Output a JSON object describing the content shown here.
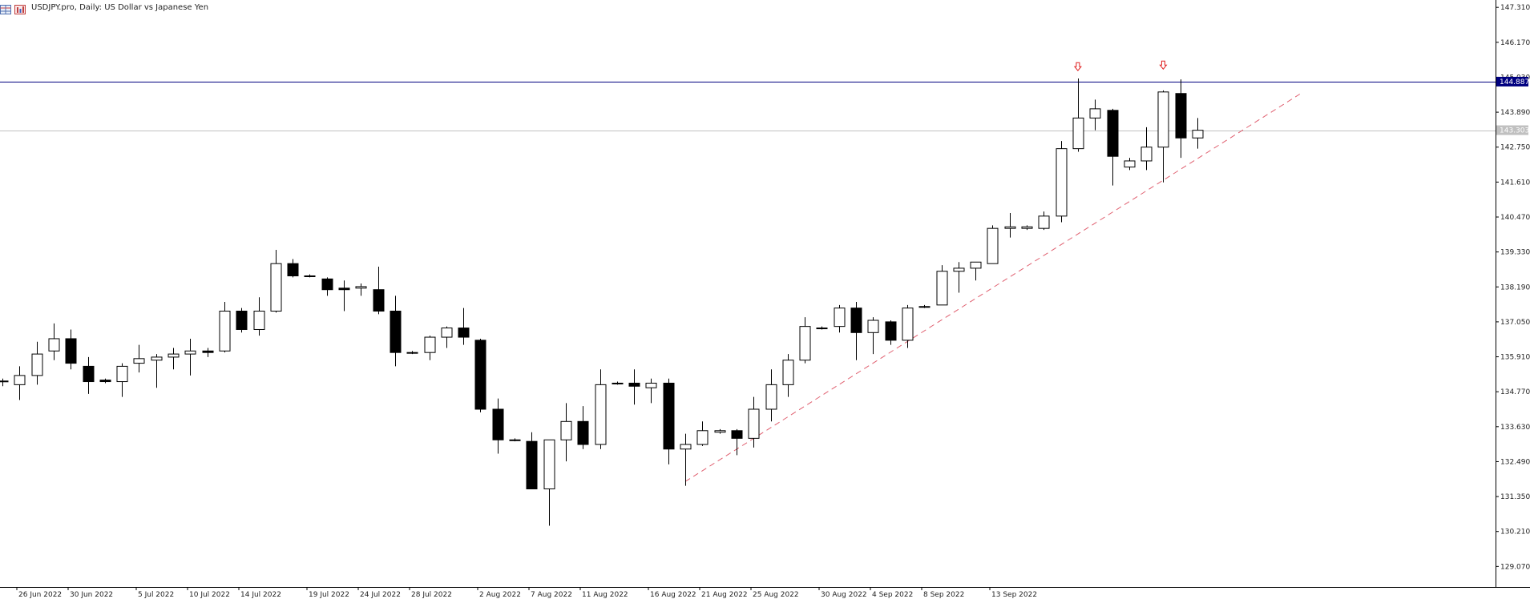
{
  "header": {
    "title": "USDJPY.pro, Daily:  US Dollar vs Japanese Yen",
    "icons": [
      "chart-grid-icon",
      "chart-bars-icon"
    ]
  },
  "chart_data": {
    "type": "candlestick",
    "symbol": "USDJPY.pro",
    "timeframe": "Daily",
    "description": "US Dollar vs Japanese Yen",
    "ylim": [
      128.4,
      147.55
    ],
    "y_ticks": [
      "147.310",
      "146.170",
      "145.030",
      "143.890",
      "142.750",
      "141.610",
      "140.470",
      "139.330",
      "138.190",
      "137.050",
      "135.910",
      "134.770",
      "133.630",
      "132.490",
      "131.350",
      "130.210",
      "129.070"
    ],
    "x_ticks": [
      "26 Jun 2022",
      "30 Jun 2022",
      "5 Jul 2022",
      "10 Jul 2022",
      "14 Jul 2022",
      "19 Jul 2022",
      "24 Jul 2022",
      "28 Jul 2022",
      "2 Aug 2022",
      "7 Aug 2022",
      "11 Aug 2022",
      "16 Aug 2022",
      "21 Aug 2022",
      "25 Aug 2022",
      "30 Aug 2022",
      "4 Sep 2022",
      "8 Sep 2022",
      "13 Sep 2022"
    ],
    "candles": [
      {
        "o": 135.1,
        "h": 135.2,
        "l": 134.95,
        "c": 135.12
      },
      {
        "o": 135.0,
        "h": 135.6,
        "l": 134.5,
        "c": 135.3
      },
      {
        "o": 135.3,
        "h": 136.4,
        "l": 135.0,
        "c": 136.0
      },
      {
        "o": 136.1,
        "h": 137.0,
        "l": 135.8,
        "c": 136.5
      },
      {
        "o": 136.5,
        "h": 136.8,
        "l": 135.5,
        "c": 135.7
      },
      {
        "o": 135.6,
        "h": 135.9,
        "l": 134.7,
        "c": 135.1
      },
      {
        "o": 135.15,
        "h": 135.2,
        "l": 135.05,
        "c": 135.1
      },
      {
        "o": 135.1,
        "h": 135.7,
        "l": 134.6,
        "c": 135.6
      },
      {
        "o": 135.7,
        "h": 136.3,
        "l": 135.4,
        "c": 135.85
      },
      {
        "o": 135.8,
        "h": 136.0,
        "l": 134.9,
        "c": 135.9
      },
      {
        "o": 135.9,
        "h": 136.2,
        "l": 135.5,
        "c": 136.0
      },
      {
        "o": 136.0,
        "h": 136.5,
        "l": 135.3,
        "c": 136.1
      },
      {
        "o": 136.1,
        "h": 136.2,
        "l": 135.9,
        "c": 136.05
      },
      {
        "o": 136.1,
        "h": 137.7,
        "l": 136.05,
        "c": 137.4
      },
      {
        "o": 137.4,
        "h": 137.5,
        "l": 136.7,
        "c": 136.8
      },
      {
        "o": 136.8,
        "h": 137.85,
        "l": 136.6,
        "c": 137.4
      },
      {
        "o": 137.4,
        "h": 139.4,
        "l": 137.35,
        "c": 138.95
      },
      {
        "o": 138.95,
        "h": 139.1,
        "l": 138.5,
        "c": 138.55
      },
      {
        "o": 138.55,
        "h": 138.6,
        "l": 138.5,
        "c": 138.55
      },
      {
        "o": 138.45,
        "h": 138.5,
        "l": 137.9,
        "c": 138.1
      },
      {
        "o": 138.15,
        "h": 138.4,
        "l": 137.4,
        "c": 138.1
      },
      {
        "o": 138.15,
        "h": 138.3,
        "l": 137.9,
        "c": 138.2
      },
      {
        "o": 138.1,
        "h": 138.85,
        "l": 137.3,
        "c": 137.4
      },
      {
        "o": 137.4,
        "h": 137.9,
        "l": 135.6,
        "c": 136.05
      },
      {
        "o": 136.05,
        "h": 136.1,
        "l": 136.0,
        "c": 136.05
      },
      {
        "o": 136.05,
        "h": 136.6,
        "l": 135.8,
        "c": 136.55
      },
      {
        "o": 136.55,
        "h": 136.9,
        "l": 136.2,
        "c": 136.85
      },
      {
        "o": 136.85,
        "h": 137.5,
        "l": 136.3,
        "c": 136.55
      },
      {
        "o": 136.45,
        "h": 136.5,
        "l": 134.1,
        "c": 134.2
      },
      {
        "o": 134.2,
        "h": 134.55,
        "l": 132.75,
        "c": 133.2
      },
      {
        "o": 133.2,
        "h": 133.25,
        "l": 133.15,
        "c": 133.2
      },
      {
        "o": 133.15,
        "h": 133.45,
        "l": 131.6,
        "c": 131.6
      },
      {
        "o": 131.6,
        "h": 133.2,
        "l": 130.4,
        "c": 133.2
      },
      {
        "o": 133.2,
        "h": 134.4,
        "l": 132.5,
        "c": 133.8
      },
      {
        "o": 133.8,
        "h": 134.3,
        "l": 132.9,
        "c": 133.05
      },
      {
        "o": 133.05,
        "h": 135.5,
        "l": 132.9,
        "c": 135.0
      },
      {
        "o": 135.05,
        "h": 135.1,
        "l": 135.0,
        "c": 135.05
      },
      {
        "o": 135.05,
        "h": 135.5,
        "l": 134.35,
        "c": 134.95
      },
      {
        "o": 134.9,
        "h": 135.2,
        "l": 134.4,
        "c": 135.05
      },
      {
        "o": 135.05,
        "h": 135.2,
        "l": 132.4,
        "c": 132.9
      },
      {
        "o": 132.9,
        "h": 133.4,
        "l": 131.7,
        "c": 133.05
      },
      {
        "o": 133.05,
        "h": 133.8,
        "l": 133.0,
        "c": 133.5
      },
      {
        "o": 133.45,
        "h": 133.55,
        "l": 133.4,
        "c": 133.5
      },
      {
        "o": 133.5,
        "h": 133.55,
        "l": 132.7,
        "c": 133.25
      },
      {
        "o": 133.25,
        "h": 134.6,
        "l": 132.95,
        "c": 134.2
      },
      {
        "o": 134.2,
        "h": 135.5,
        "l": 133.8,
        "c": 135.0
      },
      {
        "o": 135.0,
        "h": 136.0,
        "l": 134.6,
        "c": 135.8
      },
      {
        "o": 135.8,
        "h": 137.2,
        "l": 135.7,
        "c": 136.9
      },
      {
        "o": 136.85,
        "h": 136.9,
        "l": 136.8,
        "c": 136.85
      },
      {
        "o": 136.9,
        "h": 137.6,
        "l": 136.7,
        "c": 137.5
      },
      {
        "o": 137.5,
        "h": 137.7,
        "l": 135.8,
        "c": 136.7
      },
      {
        "o": 136.7,
        "h": 137.2,
        "l": 136.0,
        "c": 137.1
      },
      {
        "o": 137.05,
        "h": 137.1,
        "l": 136.3,
        "c": 136.45
      },
      {
        "o": 136.45,
        "h": 137.6,
        "l": 136.2,
        "c": 137.5
      },
      {
        "o": 137.55,
        "h": 137.6,
        "l": 137.5,
        "c": 137.55
      },
      {
        "o": 137.6,
        "h": 138.9,
        "l": 137.6,
        "c": 138.7
      },
      {
        "o": 138.7,
        "h": 139.0,
        "l": 138.0,
        "c": 138.8
      },
      {
        "o": 138.8,
        "h": 139.0,
        "l": 138.4,
        "c": 139.0
      },
      {
        "o": 138.95,
        "h": 140.2,
        "l": 138.95,
        "c": 140.1
      },
      {
        "o": 140.1,
        "h": 140.6,
        "l": 139.8,
        "c": 140.15
      },
      {
        "o": 140.1,
        "h": 140.2,
        "l": 140.05,
        "c": 140.15
      },
      {
        "o": 140.1,
        "h": 140.65,
        "l": 140.05,
        "c": 140.5
      },
      {
        "o": 140.5,
        "h": 142.95,
        "l": 140.3,
        "c": 142.7
      },
      {
        "o": 142.7,
        "h": 144.99,
        "l": 142.6,
        "c": 143.7
      },
      {
        "o": 143.7,
        "h": 144.3,
        "l": 143.3,
        "c": 144.0
      },
      {
        "o": 143.95,
        "h": 144.0,
        "l": 141.5,
        "c": 142.45
      },
      {
        "o": 142.1,
        "h": 142.4,
        "l": 142.0,
        "c": 142.3
      },
      {
        "o": 142.3,
        "h": 143.4,
        "l": 142.0,
        "c": 142.75
      },
      {
        "o": 142.75,
        "h": 144.6,
        "l": 141.6,
        "c": 144.55
      },
      {
        "o": 144.5,
        "h": 144.96,
        "l": 142.4,
        "c": 143.05
      },
      {
        "o": 143.05,
        "h": 143.7,
        "l": 142.7,
        "c": 143.3
      }
    ],
    "horizontal_levels": [
      {
        "price": 144.887,
        "label": "144.887",
        "color": "#000080"
      },
      {
        "price": 143.303,
        "label": "143.303",
        "color": "#c0c0c0"
      }
    ],
    "trendline": {
      "from": {
        "index": 40,
        "price": 131.84
      },
      "to": {
        "index": 76,
        "price": 144.48
      },
      "color": "#e06070",
      "style": "dashed"
    },
    "markers": [
      {
        "index": 63,
        "price": 145.35,
        "symbol": "down-arrow",
        "color": "#e02020"
      },
      {
        "index": 68,
        "price": 145.4,
        "symbol": "down-arrow",
        "color": "#e02020"
      }
    ],
    "colors": {
      "bull_body": "#ffffff",
      "bear_body": "#000000",
      "wick": "#000000",
      "axis": "#000000",
      "axis_text": "#222222"
    }
  }
}
